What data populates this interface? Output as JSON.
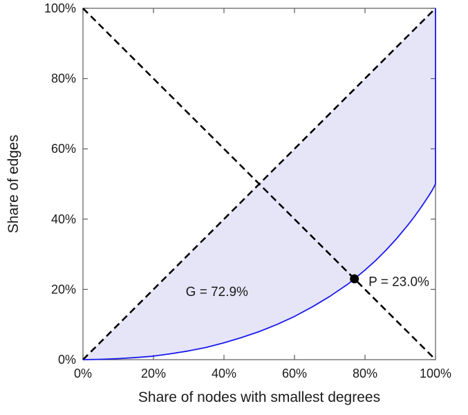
{
  "chart_data": {
    "type": "line",
    "title": "",
    "xlabel": "Share of nodes with smallest degrees",
    "ylabel": "Share of edges",
    "xlim": [
      0,
      100
    ],
    "ylim": [
      0,
      100
    ],
    "x_ticks": [
      0,
      20,
      40,
      60,
      80,
      100
    ],
    "y_ticks": [
      0,
      20,
      40,
      60,
      80,
      100
    ],
    "tick_suffix": "%",
    "grid": false,
    "legend": "none",
    "axis_color": "#595959",
    "tick_label_color": "#1a1a1a",
    "series": [
      {
        "name": "lorenz-curve",
        "color": "#1a1aee",
        "width": 1.8,
        "points": [
          [
            0,
            0
          ],
          [
            5,
            0.1
          ],
          [
            10,
            0.3
          ],
          [
            15,
            0.6
          ],
          [
            20,
            1.0
          ],
          [
            25,
            1.7
          ],
          [
            30,
            2.5
          ],
          [
            35,
            3.5
          ],
          [
            40,
            4.8
          ],
          [
            45,
            6.3
          ],
          [
            50,
            8.0
          ],
          [
            55,
            10.0
          ],
          [
            60,
            12.3
          ],
          [
            65,
            15.0
          ],
          [
            70,
            18.0
          ],
          [
            75,
            21.4
          ],
          [
            77,
            23.0
          ],
          [
            80,
            25.5
          ],
          [
            83,
            28.2
          ],
          [
            86,
            31.2
          ],
          [
            89,
            34.5
          ],
          [
            92,
            38.1
          ],
          [
            94,
            40.7
          ],
          [
            96,
            43.5
          ],
          [
            98,
            46.5
          ],
          [
            99,
            48.1
          ],
          [
            100,
            50.0
          ],
          [
            100,
            100
          ]
        ]
      }
    ],
    "reference_lines": [
      {
        "name": "equality-diagonal",
        "from": [
          0,
          0
        ],
        "to": [
          100,
          100
        ],
        "style": "dashed",
        "color": "#000000",
        "width": 2.6
      },
      {
        "name": "anti-diagonal",
        "from": [
          0,
          100
        ],
        "to": [
          100,
          0
        ],
        "style": "dashed",
        "color": "#000000",
        "width": 2.6
      }
    ],
    "shaded_region": {
      "name": "gini-area-between-diagonal-and-curve",
      "color": "#e5e5f7"
    },
    "marker_point": {
      "x": 77,
      "y": 23,
      "color": "#000000",
      "radius": 6.5
    },
    "annotations": [
      {
        "name": "gini-label",
        "text": "G = 72.9%",
        "x": 38,
        "y": 19.5,
        "anchor": "middle"
      },
      {
        "name": "p-label",
        "text": "P = 23.0%",
        "x": 81,
        "y": 22.3,
        "anchor": "start"
      }
    ],
    "gini_percent": 72.9,
    "p_percent": 23.0
  }
}
